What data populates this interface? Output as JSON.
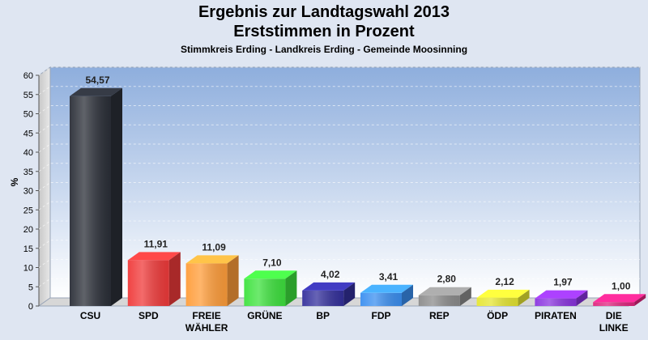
{
  "chart_data": {
    "type": "bar",
    "title": "Ergebnis zur Landtagswahl 2013",
    "subtitle": "Erststimmen in Prozent",
    "subsubtitle": "Stimmkreis Erding - Landkreis Erding - Gemeinde Moosinning",
    "ylabel": "%",
    "xlabel": "",
    "ylim": [
      0,
      60
    ],
    "yticks": [
      0,
      5,
      10,
      15,
      20,
      25,
      30,
      35,
      40,
      45,
      50,
      55,
      60
    ],
    "grid": true,
    "categories": [
      [
        "CSU"
      ],
      [
        "SPD"
      ],
      [
        "FREIE",
        "WÄHLER"
      ],
      [
        "GRÜNE"
      ],
      [
        "BP"
      ],
      [
        "FDP"
      ],
      [
        "REP"
      ],
      [
        "ÖDP"
      ],
      [
        "PIRATEN"
      ],
      [
        "DIE",
        "LINKE"
      ]
    ],
    "values": [
      54.57,
      11.91,
      11.09,
      7.1,
      4.02,
      3.41,
      2.8,
      2.12,
      1.97,
      1.0
    ],
    "value_labels": [
      "54,57",
      "11,91",
      "11,09",
      "7,10",
      "4,02",
      "3,41",
      "2,80",
      "2,12",
      "1,97",
      "1,00"
    ],
    "colors": [
      "#2b2f38",
      "#f03a3a",
      "#ff9d3a",
      "#3ee23e",
      "#34309c",
      "#3b8ff0",
      "#8c8c8c",
      "#e6e632",
      "#8a34e0",
      "#e0247e"
    ]
  }
}
